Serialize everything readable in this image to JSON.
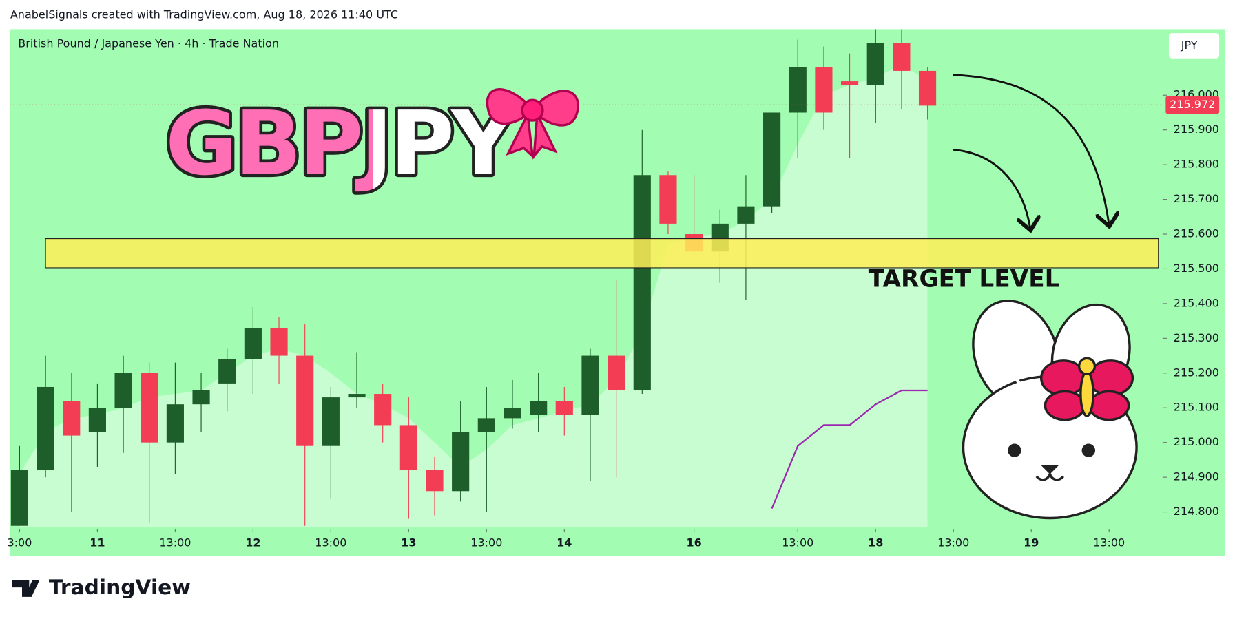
{
  "header": "AnabelSignals created with TradingView.com, Aug 18, 2026 11:40 UTC",
  "footer": "TradingView",
  "chart_data": {
    "type": "candlestick",
    "title": "GBPJPY",
    "legend": "British Pound / Japanese Yen · 4h · Trade Nation",
    "currency": "JPY",
    "annotation": "TARGET LEVEL",
    "background": "#a2fcb1",
    "up_color": "#1d5e2a",
    "down_color": "#f23d54",
    "ohlc": {
      "open": [
        214.76,
        214.92,
        215.12,
        215.03,
        215.1,
        215.2,
        215.0,
        215.11,
        215.17,
        215.24,
        215.33,
        215.25,
        214.99,
        215.13,
        215.14,
        215.05,
        214.92,
        214.86,
        215.03,
        215.07,
        215.08,
        215.12,
        215.08,
        215.25,
        215.15,
        215.77,
        215.6,
        215.55,
        215.63,
        215.68,
        215.95,
        216.08,
        216.04,
        216.03,
        216.15,
        216.07
      ],
      "high": [
        214.99,
        215.25,
        215.2,
        215.17,
        215.25,
        215.23,
        215.23,
        215.2,
        215.27,
        215.39,
        215.36,
        215.34,
        215.16,
        215.26,
        215.17,
        215.13,
        214.96,
        215.12,
        215.16,
        215.18,
        215.2,
        215.16,
        215.27,
        215.47,
        215.9,
        215.78,
        215.77,
        215.67,
        215.77,
        215.95,
        216.16,
        216.14,
        216.12,
        216.19,
        216.19,
        216.08
      ],
      "low": [
        214.76,
        214.9,
        214.8,
        214.93,
        214.97,
        214.77,
        214.91,
        215.03,
        215.09,
        215.14,
        215.17,
        214.76,
        214.84,
        215.1,
        215.0,
        214.78,
        214.79,
        214.83,
        214.8,
        215.04,
        215.03,
        215.02,
        214.89,
        214.9,
        215.14,
        215.6,
        215.53,
        215.46,
        215.41,
        215.66,
        215.82,
        215.9,
        215.82,
        215.92,
        215.96,
        215.93
      ],
      "close": [
        214.92,
        215.16,
        215.02,
        215.1,
        215.2,
        215.0,
        215.11,
        215.15,
        215.24,
        215.33,
        215.25,
        214.99,
        215.13,
        215.14,
        215.05,
        214.92,
        214.86,
        215.03,
        215.07,
        215.1,
        215.12,
        215.08,
        215.25,
        215.15,
        215.77,
        215.63,
        215.55,
        215.63,
        215.68,
        215.95,
        216.08,
        215.95,
        216.03,
        216.15,
        216.07,
        215.97
      ]
    },
    "area": {
      "values": [
        214.91,
        215.03,
        215.07,
        215.08,
        215.1,
        215.13,
        215.14,
        215.15,
        215.2,
        215.25,
        215.27,
        215.25,
        215.2,
        215.14,
        215.11,
        215.07,
        215.0,
        214.93,
        214.98,
        215.05,
        215.07,
        215.09,
        215.11,
        215.18,
        215.32,
        215.57,
        215.59,
        215.6,
        215.64,
        215.7,
        215.86,
        216.0,
        216.03,
        216.05,
        216.09,
        216.04
      ],
      "color": "#ffffff"
    },
    "indicator": {
      "x": [
        29,
        30,
        31,
        32,
        33,
        34,
        35
      ],
      "values": [
        214.81,
        214.99,
        215.05,
        215.05,
        215.11,
        215.15,
        215.15
      ],
      "color": "#9c27b0"
    },
    "target_zone": {
      "x": [
        1,
        43.9
      ],
      "y": [
        215.503,
        215.587
      ],
      "color": "#ffee58"
    },
    "last_price": 215.972,
    "xlim": [
      -0.36,
      44.0
    ],
    "ylim": [
      214.755,
      216.19
    ],
    "xticks": [
      {
        "value": 0,
        "label": "3:00"
      },
      {
        "value": 3,
        "label": "11"
      },
      {
        "value": 6,
        "label": "13:00"
      },
      {
        "value": 9,
        "label": "12"
      },
      {
        "value": 12,
        "label": "13:00"
      },
      {
        "value": 15,
        "label": "13"
      },
      {
        "value": 18,
        "label": "13:00"
      },
      {
        "value": 21,
        "label": "14"
      },
      {
        "value": 26,
        "label": "16"
      },
      {
        "value": 30,
        "label": "13:00"
      },
      {
        "value": 33,
        "label": "18"
      },
      {
        "value": 36,
        "label": "13:00"
      },
      {
        "value": 39,
        "label": "19"
      },
      {
        "value": 42,
        "label": "13:00"
      }
    ],
    "yticks": [
      {
        "value": 214.8,
        "label": "214.800"
      },
      {
        "value": 214.9,
        "label": "214.900"
      },
      {
        "value": 215.0,
        "label": "215.000"
      },
      {
        "value": 215.1,
        "label": "215.100"
      },
      {
        "value": 215.2,
        "label": "215.200"
      },
      {
        "value": 215.3,
        "label": "215.300"
      },
      {
        "value": 215.4,
        "label": "215.400"
      },
      {
        "value": 215.5,
        "label": "215.500"
      },
      {
        "value": 215.6,
        "label": "215.600"
      },
      {
        "value": 215.7,
        "label": "215.700"
      },
      {
        "value": 215.8,
        "label": "215.800"
      },
      {
        "value": 215.9,
        "label": "215.900"
      },
      {
        "value": 216.0,
        "label": "216.000"
      }
    ]
  }
}
